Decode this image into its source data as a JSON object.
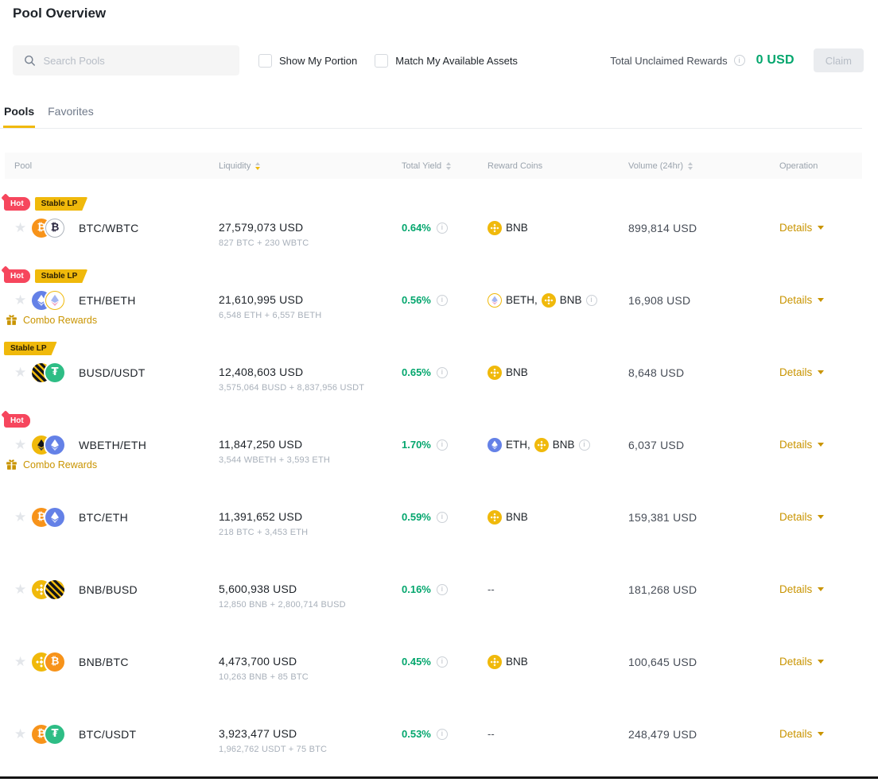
{
  "page": {
    "title": "Pool Overview"
  },
  "toolbar": {
    "search_placeholder": "Search Pools",
    "show_my_portion_label": "Show My Portion",
    "match_assets_label": "Match My Available Assets",
    "rewards_label": "Total Unclaimed Rewards",
    "rewards_value": "0 USD",
    "claim_label": "Claim"
  },
  "tabs": [
    {
      "label": "Pools",
      "active": true
    },
    {
      "label": "Favorites",
      "active": false
    }
  ],
  "labels": {
    "combo_rewards": "Combo Rewards",
    "empty_rewards": "--"
  },
  "table": {
    "columns": [
      {
        "label": "Pool",
        "sortable": false,
        "sort": null
      },
      {
        "label": "Liquidity",
        "sortable": true,
        "sort": "desc"
      },
      {
        "label": "Total Yield",
        "sortable": true,
        "sort": null
      },
      {
        "label": "Reward Coins",
        "sortable": false,
        "sort": null
      },
      {
        "label": "Volume (24hr)",
        "sortable": true,
        "sort": null
      },
      {
        "label": "Operation",
        "sortable": false,
        "sort": null
      }
    ],
    "rows": [
      {
        "pair": "BTC/WBTC",
        "coins": [
          "BTC",
          "WBTC"
        ],
        "badges": [
          "Hot",
          "Stable LP"
        ],
        "combo_rewards": false,
        "liquidity": "27,579,073 USD",
        "composition": "827 BTC + 230 WBTC",
        "total_yield": "0.64%",
        "reward_coins": [
          "BNB"
        ],
        "reward_info": false,
        "volume": "899,814 USD",
        "operation": "Details"
      },
      {
        "pair": "ETH/BETH",
        "coins": [
          "ETH",
          "BETH"
        ],
        "badges": [
          "Hot",
          "Stable LP"
        ],
        "combo_rewards": true,
        "liquidity": "21,610,995 USD",
        "composition": "6,548 ETH + 6,557 BETH",
        "total_yield": "0.56%",
        "reward_coins": [
          "BETH",
          "BNB"
        ],
        "reward_info": true,
        "volume": "16,908 USD",
        "operation": "Details"
      },
      {
        "pair": "BUSD/USDT",
        "coins": [
          "BUSD",
          "USDT"
        ],
        "badges": [
          "Stable LP"
        ],
        "combo_rewards": false,
        "liquidity": "12,408,603 USD",
        "composition": "3,575,064 BUSD + 8,837,956 USDT",
        "total_yield": "0.65%",
        "reward_coins": [
          "BNB"
        ],
        "reward_info": false,
        "volume": "8,648 USD",
        "operation": "Details"
      },
      {
        "pair": "WBETH/ETH",
        "coins": [
          "WBETH",
          "ETH"
        ],
        "badges": [
          "Hot"
        ],
        "combo_rewards": true,
        "liquidity": "11,847,250 USD",
        "composition": "3,544 WBETH + 3,593 ETH",
        "total_yield": "1.70%",
        "reward_coins": [
          "ETH",
          "BNB"
        ],
        "reward_info": true,
        "volume": "6,037 USD",
        "operation": "Details"
      },
      {
        "pair": "BTC/ETH",
        "coins": [
          "BTC",
          "ETH"
        ],
        "badges": [],
        "combo_rewards": false,
        "liquidity": "11,391,652 USD",
        "composition": "218 BTC + 3,453 ETH",
        "total_yield": "0.59%",
        "reward_coins": [
          "BNB"
        ],
        "reward_info": false,
        "volume": "159,381 USD",
        "operation": "Details"
      },
      {
        "pair": "BNB/BUSD",
        "coins": [
          "BNB",
          "BUSD"
        ],
        "badges": [],
        "combo_rewards": false,
        "liquidity": "5,600,938 USD",
        "composition": "12,850 BNB + 2,800,714 BUSD",
        "total_yield": "0.16%",
        "reward_coins": [],
        "reward_info": false,
        "volume": "181,268 USD",
        "operation": "Details"
      },
      {
        "pair": "BNB/BTC",
        "coins": [
          "BNB",
          "BTC"
        ],
        "badges": [],
        "combo_rewards": false,
        "liquidity": "4,473,700 USD",
        "composition": "10,263 BNB + 85 BTC",
        "total_yield": "0.45%",
        "reward_coins": [
          "BNB"
        ],
        "reward_info": false,
        "volume": "100,645 USD",
        "operation": "Details"
      },
      {
        "pair": "BTC/USDT",
        "coins": [
          "BTC",
          "USDT"
        ],
        "badges": [],
        "combo_rewards": false,
        "liquidity": "3,923,477 USD",
        "composition": "1,962,762 USDT + 75 BTC",
        "total_yield": "0.53%",
        "reward_coins": [],
        "reward_info": false,
        "volume": "248,479 USD",
        "operation": "Details"
      }
    ]
  },
  "coin_styles": {
    "BTC": {
      "bg": "#F7931A",
      "shape": "glyph",
      "glyph": "₿",
      "fg": "#FFFFFF"
    },
    "WBTC": {
      "bg": "#FFFFFF",
      "shape": "glyph",
      "glyph": "₿",
      "fg": "#24203A",
      "ring": "#AEB4BC"
    },
    "ETH": {
      "bg": "#6481E7",
      "shape": "eth",
      "fg": "#FFFFFF",
      "fg2": "#CDD8FA"
    },
    "BETH": {
      "bg": "#FFFFFF",
      "shape": "eth",
      "fg": "#A4B6F2",
      "fg2": "#F2A9C6",
      "ring": "#F0B90B"
    },
    "WBETH": {
      "bg": "#F0B90B",
      "shape": "eth",
      "fg": "#14151A",
      "fg2": "#3A3D45"
    },
    "BNB": {
      "bg": "#F0B90B",
      "shape": "bnb",
      "fg": "#FFFFFF"
    },
    "BUSD": {
      "bg": "#14151A",
      "shape": "busd",
      "fg": "#F0B90B"
    },
    "USDT": {
      "bg": "#2EBD85",
      "shape": "glyph",
      "glyph": "₮",
      "fg": "#FFFFFF"
    }
  },
  "icons": {
    "search": "magnifier",
    "info_glyph": "i",
    "star_glyph": "★",
    "sort": "up-down-triangles",
    "caret": "down-triangle",
    "gift": "gift-box",
    "checkbox": "empty-square"
  },
  "colors": {
    "accent_yellow": "#F0B90B",
    "green": "#03A66D",
    "link_gold": "#C99400",
    "hot_red": "#F6465D",
    "text_dark": "#1E2329",
    "text_gray": "#9AA3AD",
    "header_bg": "#FAFAFA"
  }
}
